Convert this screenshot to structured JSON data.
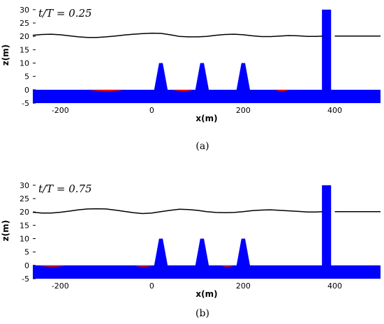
{
  "chart_data": [
    {
      "type": "area",
      "annotation": "t/T = 0.25",
      "caption": "(a)",
      "xlabel": "x(m)",
      "ylabel": "z(m)",
      "xlim": [
        -260,
        500
      ],
      "ylim": [
        -5,
        31
      ],
      "xticks": [
        -200,
        0,
        200,
        400
      ],
      "yticks": [
        -5,
        0,
        5,
        10,
        15,
        20,
        25,
        30
      ],
      "surface": {
        "x": [
          -260,
          -240,
          -220,
          -200,
          -180,
          -160,
          -140,
          -120,
          -100,
          -80,
          -60,
          -40,
          -20,
          0,
          20,
          40,
          60,
          80,
          100,
          120,
          140,
          160,
          180,
          200,
          220,
          240,
          260,
          280,
          300,
          320,
          340,
          360,
          375
        ],
        "y": [
          20.4,
          20.7,
          20.8,
          20.6,
          20.2,
          19.8,
          19.6,
          19.6,
          19.8,
          20.1,
          20.5,
          20.8,
          21.0,
          21.2,
          21.1,
          20.6,
          20.0,
          19.8,
          19.8,
          20.0,
          20.4,
          20.7,
          20.8,
          20.6,
          20.2,
          19.9,
          19.9,
          20.1,
          20.3,
          20.2,
          20.0,
          20.0,
          20.1
        ]
      },
      "flat_surface": {
        "x": [
          400,
          500
        ],
        "y": 20.1
      },
      "seabed": {
        "x": [
          -260,
          500
        ],
        "top": 0,
        "bottom": -5
      },
      "breakwaters": [
        {
          "center": 20,
          "top": 10,
          "top_width": 8,
          "base_width": 30
        },
        {
          "center": 110,
          "top": 10,
          "top_width": 8,
          "base_width": 30
        },
        {
          "center": 200,
          "top": 10,
          "top_width": 8,
          "base_width": 30
        }
      ],
      "wall": {
        "x0": 372,
        "x1": 392,
        "top": 30
      },
      "red_regions": [
        {
          "x0": -140,
          "x1": -60
        },
        {
          "x0": 45,
          "x1": 90
        },
        {
          "x0": 270,
          "x1": 300
        }
      ],
      "colors": {
        "solid": "#0000ff",
        "surface": "#000000",
        "red": "#ff0000"
      }
    },
    {
      "type": "area",
      "annotation": "t/T = 0.75",
      "caption": "(b)",
      "xlabel": "x(m)",
      "ylabel": "z(m)",
      "xlim": [
        -260,
        500
      ],
      "ylim": [
        -5,
        31
      ],
      "xticks": [
        -200,
        0,
        200,
        400
      ],
      "yticks": [
        -5,
        0,
        5,
        10,
        15,
        20,
        25,
        30
      ],
      "surface": {
        "x": [
          -260,
          -240,
          -220,
          -200,
          -180,
          -160,
          -140,
          -120,
          -100,
          -80,
          -60,
          -40,
          -20,
          0,
          20,
          40,
          60,
          80,
          100,
          120,
          140,
          160,
          180,
          200,
          220,
          240,
          260,
          280,
          300,
          320,
          340,
          360,
          375
        ],
        "y": [
          19.9,
          19.6,
          19.6,
          19.9,
          20.3,
          20.8,
          21.1,
          21.2,
          21.1,
          20.7,
          20.2,
          19.7,
          19.4,
          19.6,
          20.1,
          20.6,
          21.0,
          20.9,
          20.6,
          20.1,
          19.8,
          19.7,
          19.8,
          20.1,
          20.5,
          20.7,
          20.8,
          20.6,
          20.4,
          20.2,
          20.0,
          20.0,
          20.1
        ]
      },
      "flat_surface": {
        "x": [
          400,
          500
        ],
        "y": 20.1
      },
      "seabed": {
        "x": [
          -260,
          500
        ],
        "top": 0,
        "bottom": -5
      },
      "breakwaters": [
        {
          "center": 20,
          "top": 10,
          "top_width": 8,
          "base_width": 30
        },
        {
          "center": 110,
          "top": 10,
          "top_width": 8,
          "base_width": 30
        },
        {
          "center": 200,
          "top": 10,
          "top_width": 8,
          "base_width": 30
        }
      ],
      "wall": {
        "x0": 372,
        "x1": 392,
        "top": 30
      },
      "red_regions": [
        {
          "x0": -250,
          "x1": -185
        },
        {
          "x0": -40,
          "x1": 5
        },
        {
          "x0": 150,
          "x1": 180
        }
      ],
      "colors": {
        "solid": "#0000ff",
        "surface": "#000000",
        "red": "#ff0000"
      }
    }
  ]
}
